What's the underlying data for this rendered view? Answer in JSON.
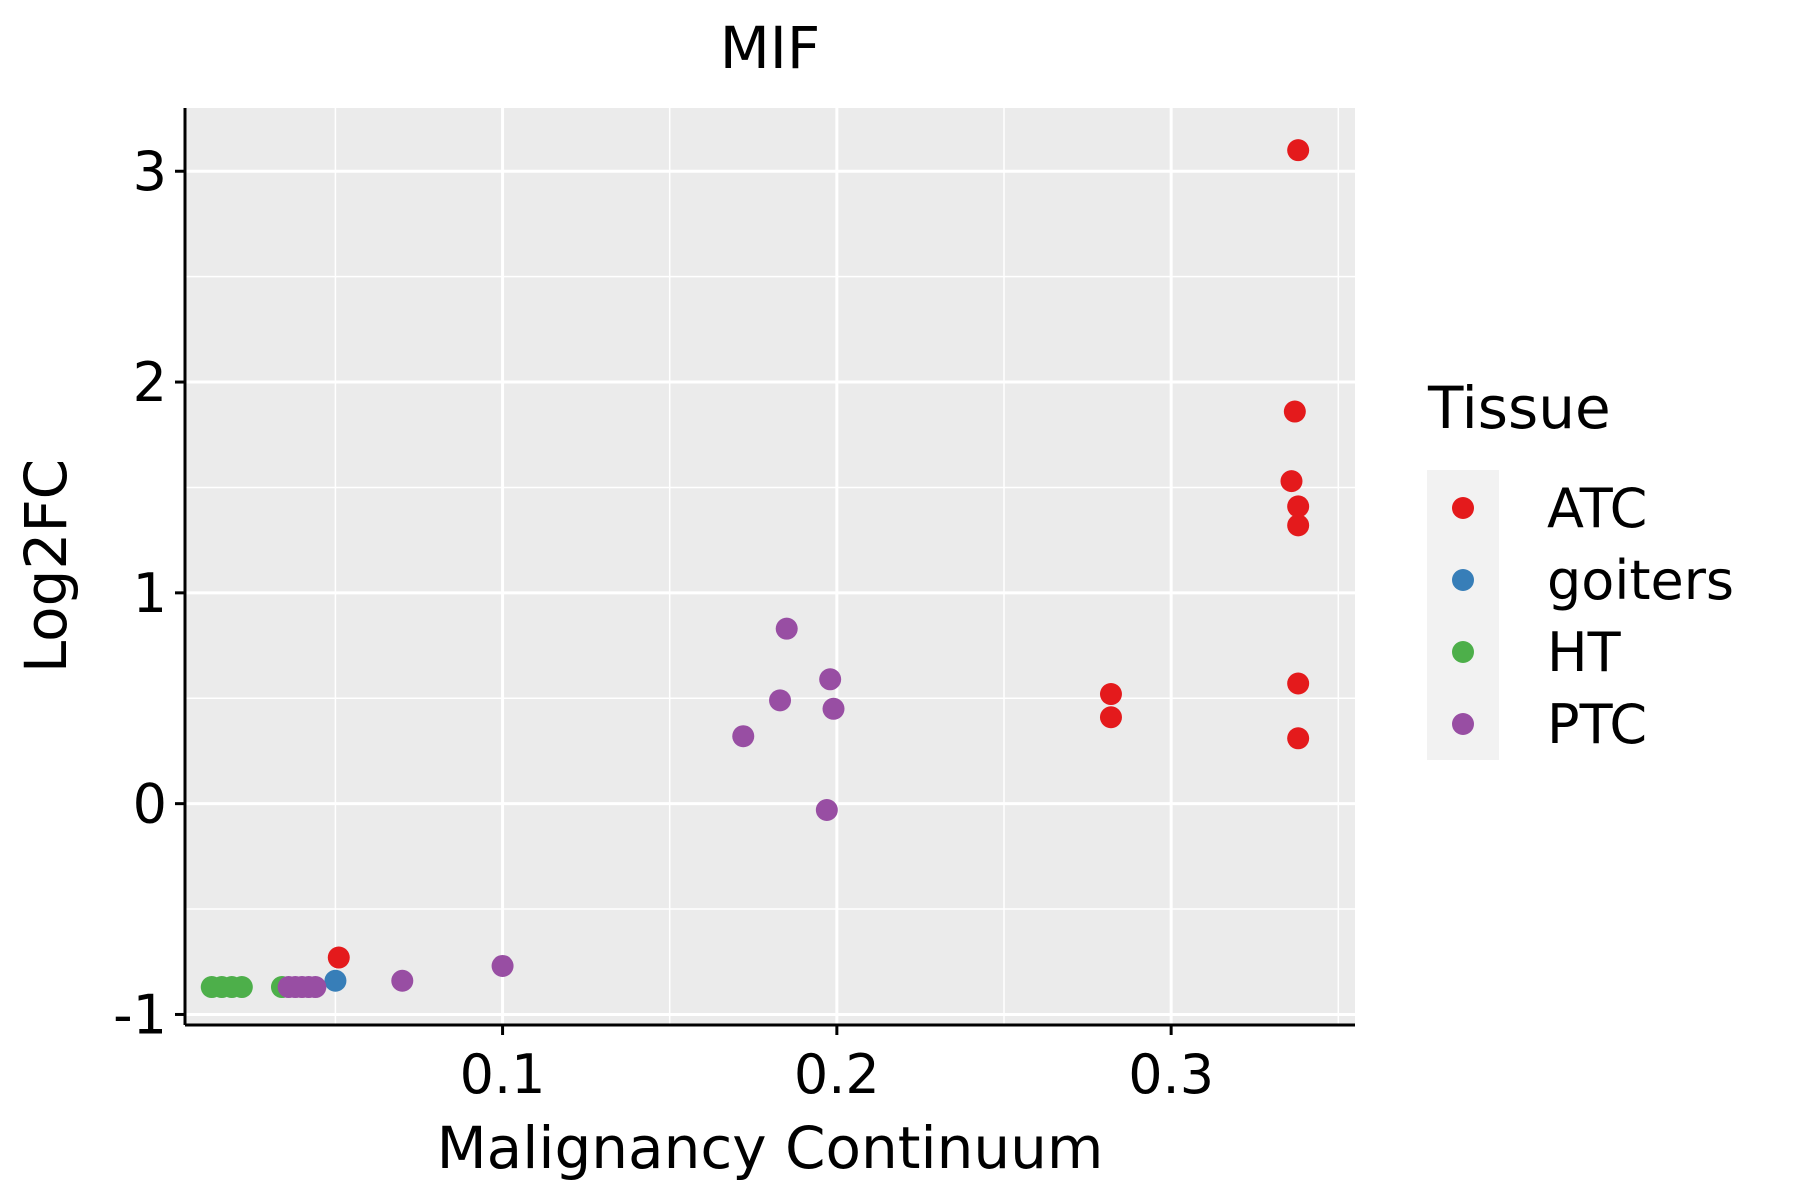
{
  "chart_data": {
    "type": "scatter",
    "title": "MIF",
    "xlabel": "Malignancy Continuum",
    "ylabel": "Log2FC",
    "xlim": [
      0.005,
      0.355
    ],
    "ylim": [
      -1.05,
      3.3
    ],
    "x_ticks": [
      0.1,
      0.2,
      0.3
    ],
    "x_tick_labels": [
      "0.1",
      "0.2",
      "0.3"
    ],
    "y_ticks": [
      -1,
      0,
      1,
      2,
      3
    ],
    "y_tick_labels": [
      "-1",
      "0",
      "1",
      "2",
      "3"
    ],
    "grid": true,
    "legend": {
      "title": "Tissue",
      "position": "right"
    },
    "series": [
      {
        "name": "ATC",
        "color": "#E41A1C",
        "points": [
          [
            0.338,
            3.1
          ],
          [
            0.337,
            1.86
          ],
          [
            0.336,
            1.53
          ],
          [
            0.338,
            1.41
          ],
          [
            0.338,
            1.32
          ],
          [
            0.338,
            0.57
          ],
          [
            0.338,
            0.31
          ],
          [
            0.282,
            0.52
          ],
          [
            0.282,
            0.41
          ],
          [
            0.051,
            -0.73
          ]
        ]
      },
      {
        "name": "goiters",
        "color": "#377EB8",
        "points": [
          [
            0.05,
            -0.84
          ]
        ]
      },
      {
        "name": "HT",
        "color": "#4DAF4A",
        "points": [
          [
            0.013,
            -0.87
          ],
          [
            0.016,
            -0.87
          ],
          [
            0.019,
            -0.87
          ],
          [
            0.022,
            -0.87
          ],
          [
            0.034,
            -0.87
          ]
        ]
      },
      {
        "name": "PTC",
        "color": "#984EA3",
        "points": [
          [
            0.036,
            -0.87
          ],
          [
            0.038,
            -0.87
          ],
          [
            0.04,
            -0.87
          ],
          [
            0.042,
            -0.87
          ],
          [
            0.044,
            -0.87
          ],
          [
            0.07,
            -0.84
          ],
          [
            0.1,
            -0.77
          ],
          [
            0.172,
            0.32
          ],
          [
            0.183,
            0.49
          ],
          [
            0.185,
            0.83
          ],
          [
            0.198,
            0.59
          ],
          [
            0.199,
            0.45
          ],
          [
            0.197,
            -0.03
          ]
        ]
      }
    ]
  }
}
